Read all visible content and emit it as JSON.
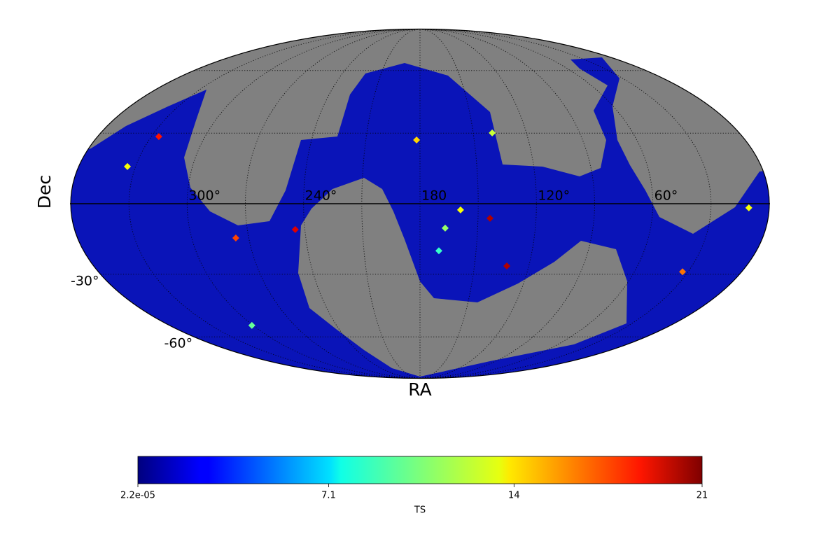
{
  "chart_data": {
    "type": "mollweide",
    "xlabel": "RA",
    "ylabel": "Dec",
    "xlim": [
      360,
      0
    ],
    "ylim": [
      -90,
      90
    ],
    "xticks": [
      {
        "value": 300,
        "label": "300°"
      },
      {
        "value": 240,
        "label": "240°"
      },
      {
        "value": 180,
        "label": "180"
      },
      {
        "value": 120,
        "label": "120°"
      },
      {
        "value": 60,
        "label": "60°"
      }
    ],
    "yticks": [
      {
        "value": -30,
        "label": "-30°"
      },
      {
        "value": -60,
        "label": "-60°"
      }
    ],
    "grid": true,
    "ra": [
      143.8,
      132.1,
      245.0,
      276.8,
      325.8,
      33.1,
      181.9,
      159.1,
      334.3,
      169.9,
      300.8,
      166.9,
      139.3,
      10.5
    ],
    "dec": [
      -6.1,
      -26.4,
      -10.8,
      -14.4,
      28.5,
      -28.9,
      27.0,
      -2.6,
      15.6,
      -19.8,
      -54.0,
      -10.2,
      30.1,
      -1.7
    ],
    "values": [
      20,
      20,
      19,
      17,
      18,
      16,
      14,
      13,
      13,
      9,
      10,
      11,
      12,
      13
    ],
    "colormap": "jet",
    "colorbar_label": "TS",
    "clim": [
      2.2e-05,
      21
    ],
    "cticks": [
      {
        "value": 2.2e-05,
        "label": "2.2e-05"
      },
      7.1,
      14,
      21
    ]
  }
}
